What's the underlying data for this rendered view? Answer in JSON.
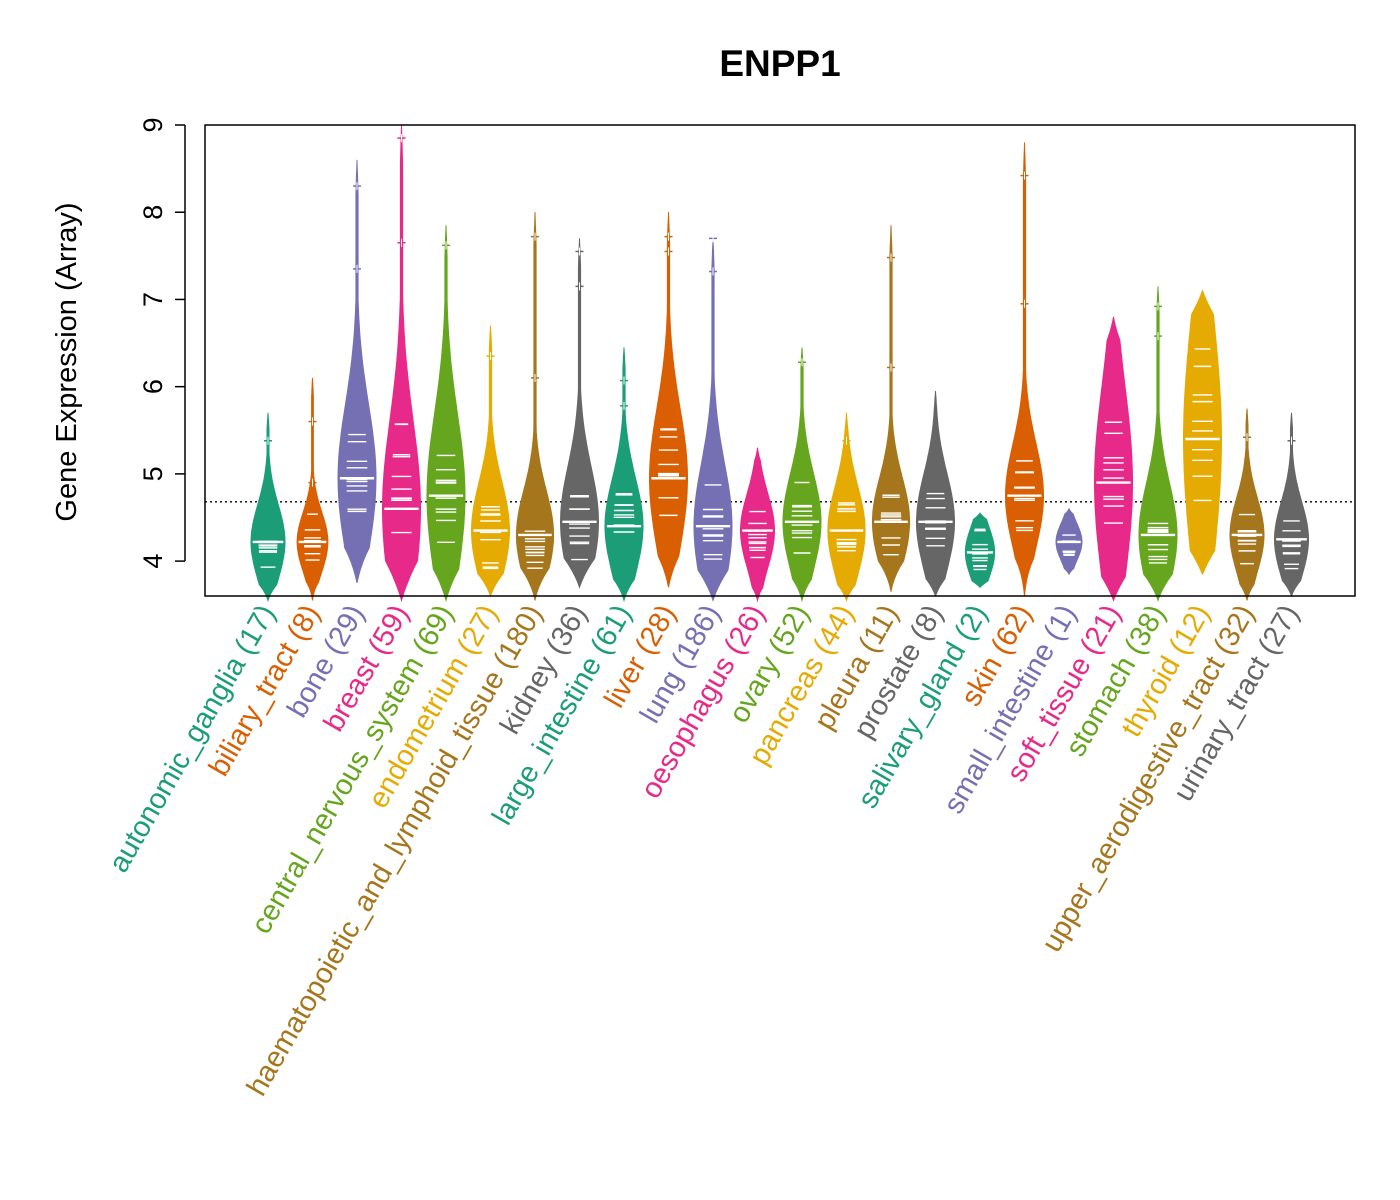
{
  "chart_data": {
    "type": "violin",
    "title": "ENPP1",
    "xlabel": "",
    "ylabel": "Gene Expression (Array)",
    "ylim": [
      3.6,
      9.0
    ],
    "yticks": [
      4,
      5,
      6,
      7,
      8,
      9
    ],
    "reference_line": 4.68,
    "palette": [
      "#1b9e77",
      "#d95f02",
      "#7570b3",
      "#e7298a",
      "#66a61e",
      "#e6ab02",
      "#a6761d",
      "#666666"
    ],
    "categories": [
      {
        "label": "autonomic_ganglia (17)",
        "color": "#1b9e77",
        "min": 3.55,
        "max": 5.7,
        "median": 4.22,
        "q1": 3.95,
        "q3": 4.45,
        "outliers": [
          5.38
        ]
      },
      {
        "label": "biliary_tract (8)",
        "color": "#d95f02",
        "min": 3.55,
        "max": 6.1,
        "median": 4.22,
        "q1": 4.05,
        "q3": 4.45,
        "outliers": [
          4.9,
          5.6
        ]
      },
      {
        "label": "bone (29)",
        "color": "#7570b3",
        "min": 3.75,
        "max": 8.6,
        "median": 4.95,
        "q1": 4.6,
        "q3": 5.6,
        "outliers": [
          7.35,
          8.3
        ]
      },
      {
        "label": "breast (59)",
        "color": "#e7298a",
        "min": 3.55,
        "max": 9.0,
        "median": 4.6,
        "q1": 4.2,
        "q3": 5.4,
        "outliers": [
          7.65,
          8.85
        ]
      },
      {
        "label": "central_nervous_system (69)",
        "color": "#66a61e",
        "min": 3.55,
        "max": 7.85,
        "median": 4.75,
        "q1": 4.3,
        "q3": 5.4,
        "outliers": [
          7.62
        ]
      },
      {
        "label": "endometrium (27)",
        "color": "#e6ab02",
        "min": 3.6,
        "max": 6.7,
        "median": 4.35,
        "q1": 4.05,
        "q3": 4.7,
        "outliers": [
          6.35
        ]
      },
      {
        "label": "haematopoietic_and_lymphoid_tissue (180)",
        "color": "#a6761d",
        "min": 3.55,
        "max": 8.0,
        "median": 4.3,
        "q1": 4.0,
        "q3": 4.6,
        "outliers": [
          6.1,
          7.72
        ]
      },
      {
        "label": "kidney (36)",
        "color": "#666666",
        "min": 3.7,
        "max": 7.7,
        "median": 4.45,
        "q1": 4.15,
        "q3": 4.9,
        "outliers": [
          7.15,
          7.55
        ]
      },
      {
        "label": "large_intestine (61)",
        "color": "#1b9e77",
        "min": 3.55,
        "max": 6.45,
        "median": 4.4,
        "q1": 4.1,
        "q3": 4.75,
        "outliers": [
          5.78,
          6.07
        ]
      },
      {
        "label": "liver (28)",
        "color": "#d95f02",
        "min": 3.7,
        "max": 8.0,
        "median": 4.95,
        "q1": 4.55,
        "q3": 5.5,
        "outliers": [
          7.55,
          7.72
        ]
      },
      {
        "label": "lung (186)",
        "color": "#7570b3",
        "min": 3.55,
        "max": 7.7,
        "median": 4.4,
        "q1": 4.05,
        "q3": 4.9,
        "outliers": [
          7.32,
          7.7
        ]
      },
      {
        "label": "oesophagus (26)",
        "color": "#e7298a",
        "min": 3.55,
        "max": 5.3,
        "median": 4.35,
        "q1": 4.1,
        "q3": 4.6,
        "outliers": []
      },
      {
        "label": "ovary (52)",
        "color": "#66a61e",
        "min": 3.55,
        "max": 6.45,
        "median": 4.45,
        "q1": 4.15,
        "q3": 4.8,
        "outliers": [
          6.28
        ]
      },
      {
        "label": "pancreas (44)",
        "color": "#e6ab02",
        "min": 3.55,
        "max": 5.7,
        "median": 4.35,
        "q1": 4.05,
        "q3": 4.65,
        "outliers": [
          5.38
        ]
      },
      {
        "label": "pleura (11)",
        "color": "#a6761d",
        "min": 3.65,
        "max": 7.85,
        "median": 4.45,
        "q1": 4.15,
        "q3": 4.75,
        "outliers": [
          6.22,
          7.48
        ]
      },
      {
        "label": "prostate (8)",
        "color": "#666666",
        "min": 3.6,
        "max": 5.95,
        "median": 4.45,
        "q1": 4.2,
        "q3": 4.85,
        "outliers": []
      },
      {
        "label": "salivary_gland (2)",
        "color": "#1b9e77",
        "min": 3.7,
        "max": 4.55,
        "median": 4.1,
        "q1": 3.95,
        "q3": 4.3,
        "outliers": []
      },
      {
        "label": "skin (62)",
        "color": "#d95f02",
        "min": 3.6,
        "max": 8.8,
        "median": 4.75,
        "q1": 4.45,
        "q3": 5.15,
        "outliers": [
          6.95,
          8.42
        ]
      },
      {
        "label": "small_intestine (1)",
        "color": "#7570b3",
        "min": 3.85,
        "max": 4.6,
        "median": 4.22,
        "q1": 4.1,
        "q3": 4.35,
        "outliers": []
      },
      {
        "label": "soft_tissue (21)",
        "color": "#e7298a",
        "min": 3.55,
        "max": 6.8,
        "median": 4.9,
        "q1": 4.3,
        "q3": 5.6,
        "outliers": []
      },
      {
        "label": "stomach (38)",
        "color": "#66a61e",
        "min": 3.55,
        "max": 7.15,
        "median": 4.3,
        "q1": 4.0,
        "q3": 4.7,
        "outliers": [
          6.58,
          6.92
        ]
      },
      {
        "label": "thyroid (12)",
        "color": "#e6ab02",
        "min": 3.85,
        "max": 7.1,
        "median": 5.4,
        "q1": 4.6,
        "q3": 6.2,
        "outliers": []
      },
      {
        "label": "upper_aerodigestive_tract (32)",
        "color": "#a6761d",
        "min": 3.55,
        "max": 5.75,
        "median": 4.3,
        "q1": 4.05,
        "q3": 4.55,
        "outliers": [
          5.42
        ]
      },
      {
        "label": "urinary_tract (27)",
        "color": "#666666",
        "min": 3.6,
        "max": 5.7,
        "median": 4.25,
        "q1": 4.05,
        "q3": 4.55,
        "outliers": [
          5.38
        ]
      }
    ]
  }
}
